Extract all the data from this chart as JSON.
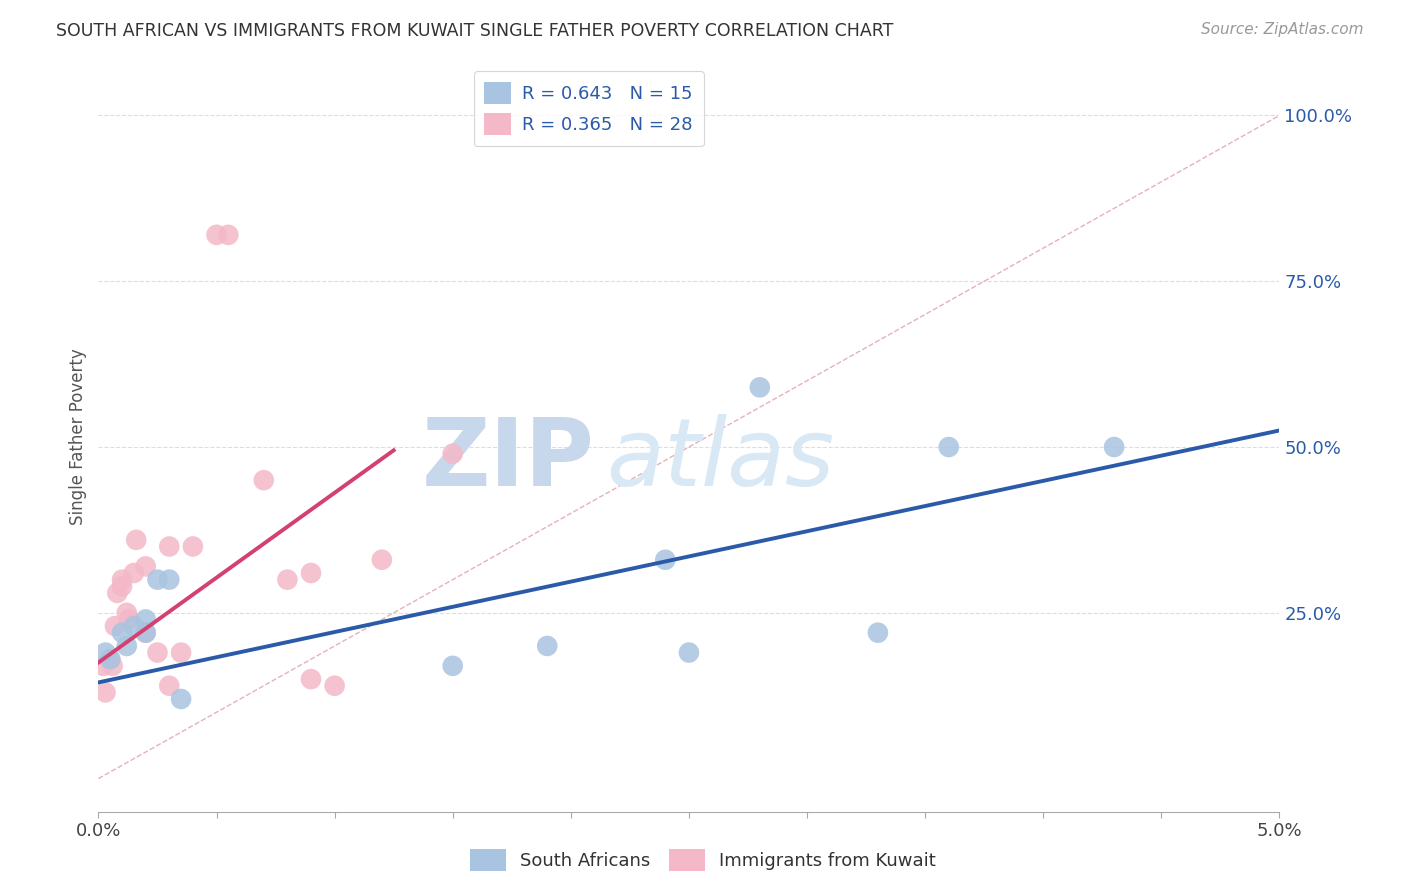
{
  "title": "SOUTH AFRICAN VS IMMIGRANTS FROM KUWAIT SINGLE FATHER POVERTY CORRELATION CHART",
  "source": "Source: ZipAtlas.com",
  "ylabel": "Single Father Poverty",
  "ylabel_right_ticks": [
    "100.0%",
    "75.0%",
    "50.0%",
    "25.0%"
  ],
  "ylabel_right_vals": [
    1.0,
    0.75,
    0.5,
    0.25
  ],
  "xlim": [
    0.0,
    0.05
  ],
  "ylim": [
    -0.05,
    1.08
  ],
  "blue_color": "#A8C4E0",
  "pink_color": "#F4B8C8",
  "blue_line_color": "#2B5BA8",
  "pink_line_color": "#D44070",
  "diag_color": "#E8B0B8",
  "watermark_zip": "ZIP",
  "watermark_atlas": "atlas",
  "background_color": "#FFFFFF",
  "grid_color": "#DDDDDD",
  "south_africans_x": [
    0.0003,
    0.0005,
    0.001,
    0.0012,
    0.0015,
    0.002,
    0.002,
    0.0025,
    0.003,
    0.0035,
    0.015,
    0.019,
    0.024,
    0.025,
    0.028,
    0.033,
    0.036,
    0.043
  ],
  "south_africans_y": [
    0.19,
    0.18,
    0.22,
    0.2,
    0.23,
    0.22,
    0.24,
    0.3,
    0.3,
    0.12,
    0.17,
    0.2,
    0.33,
    0.19,
    0.59,
    0.22,
    0.5,
    0.5
  ],
  "kuwait_x": [
    0.0002,
    0.0003,
    0.0005,
    0.0006,
    0.0007,
    0.0008,
    0.001,
    0.001,
    0.0012,
    0.0013,
    0.0015,
    0.0016,
    0.002,
    0.002,
    0.0025,
    0.003,
    0.003,
    0.0035,
    0.004,
    0.005,
    0.0055,
    0.007,
    0.008,
    0.009,
    0.009,
    0.01,
    0.012,
    0.015
  ],
  "kuwait_y": [
    0.17,
    0.13,
    0.18,
    0.17,
    0.23,
    0.28,
    0.3,
    0.29,
    0.25,
    0.24,
    0.31,
    0.36,
    0.32,
    0.22,
    0.19,
    0.14,
    0.35,
    0.19,
    0.35,
    0.82,
    0.82,
    0.45,
    0.3,
    0.31,
    0.15,
    0.14,
    0.33,
    0.49
  ],
  "blue_line_x0": 0.0,
  "blue_line_x1": 0.05,
  "blue_line_y0": 0.145,
  "blue_line_y1": 0.525,
  "pink_line_x0": 0.0,
  "pink_line_x1": 0.0125,
  "pink_line_y0": 0.175,
  "pink_line_y1": 0.495
}
